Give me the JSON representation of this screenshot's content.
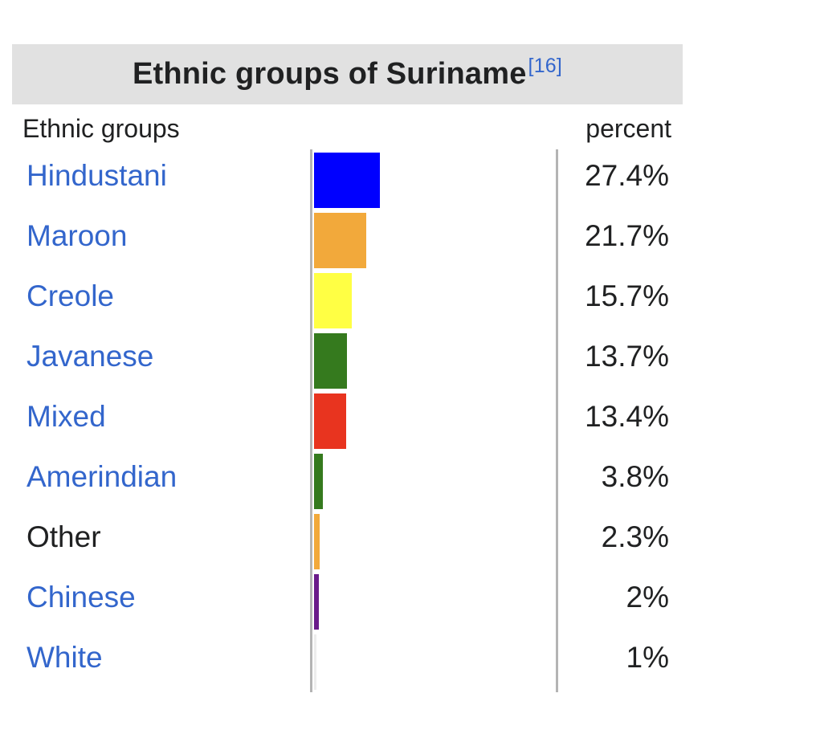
{
  "title": "Ethnic groups of Suriname",
  "reference": "[16]",
  "chart_data": {
    "type": "bar",
    "orientation": "horizontal",
    "title": "Ethnic groups of Suriname",
    "xlabel": "percent",
    "ylabel": "Ethnic groups",
    "categories": [
      "Hindustani",
      "Maroon",
      "Creole",
      "Javanese",
      "Mixed",
      "Amerindian",
      "Other",
      "Chinese",
      "White"
    ],
    "values": [
      27.4,
      21.7,
      15.7,
      13.7,
      13.4,
      3.8,
      2.3,
      2,
      1
    ],
    "value_labels": [
      "27.4%",
      "21.7%",
      "15.7%",
      "13.7%",
      "13.4%",
      "3.8%",
      "2.3%",
      "2%",
      "1%"
    ],
    "colors": [
      "#0000ff",
      "#f2a93b",
      "#ffff44",
      "#357a1e",
      "#e8341f",
      "#357a1e",
      "#f2a93b",
      "#6a1b8a",
      "#ededed"
    ],
    "linked": [
      true,
      true,
      true,
      true,
      true,
      true,
      false,
      true,
      true
    ],
    "grid": false,
    "legend": "none"
  }
}
